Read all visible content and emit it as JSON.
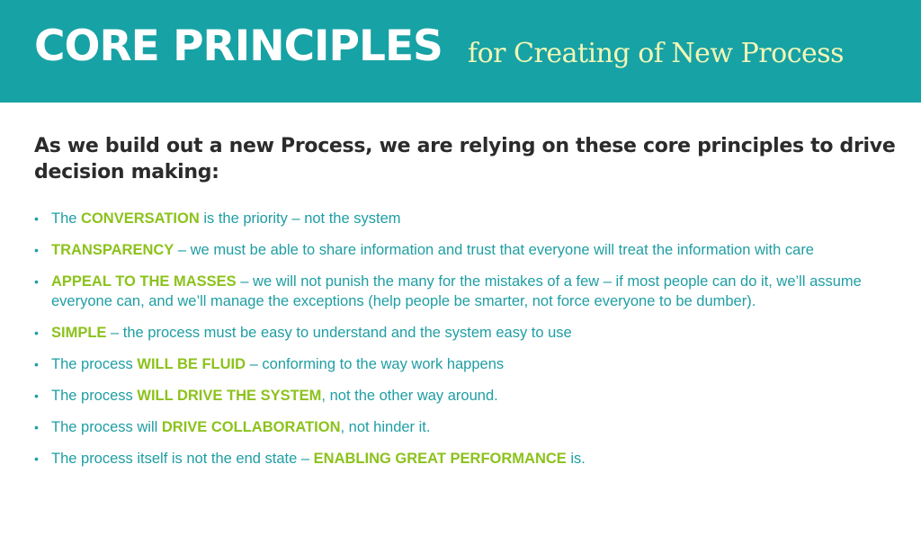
{
  "header": {
    "title_main": "CORE PRINCIPLES",
    "title_sub": "for Creating of New Process"
  },
  "intro": "As we build out a new Process, we are relying on these core principles to drive decision making:",
  "colors": {
    "banner": "#17a2a5",
    "subtitle": "#f3f7b6",
    "body_text": "#1f9ea3",
    "highlight": "#8cc21c",
    "intro_text": "#2b2b2b"
  },
  "bullet_icon": "bullet-dot",
  "principles": [
    {
      "before": "The ",
      "highlight": "CONVERSATION",
      "after": " is the priority – not the system"
    },
    {
      "before": "",
      "highlight": "TRANSPARENCY",
      "after": " – we must be able to share information and trust that everyone will treat the information with care"
    },
    {
      "before": "",
      "highlight": "APPEAL TO THE MASSES",
      "after": " – we will not punish the many for the mistakes of a few – if most people can do it, we’ll assume everyone can, and we’ll manage the exceptions (help people be smarter, not force everyone to be dumber)."
    },
    {
      "before": "",
      "highlight": "SIMPLE",
      "after": " – the process must be easy to understand and the system easy to use"
    },
    {
      "before": "The process ",
      "highlight": "WILL BE FLUID",
      "after": " – conforming to the way work happens"
    },
    {
      "before": "The process ",
      "highlight": "WILL DRIVE THE SYSTEM",
      "after": ", not the other way around."
    },
    {
      "before": "The process will ",
      "highlight": "DRIVE COLLABORATION",
      "after": ", not hinder it."
    },
    {
      "before": "The process itself is not the end state – ",
      "highlight": "ENABLING GREAT PERFORMANCE",
      "after": " is."
    }
  ]
}
